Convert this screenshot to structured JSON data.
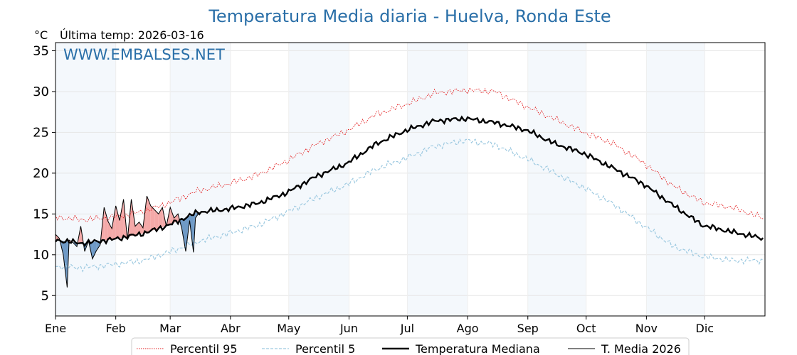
{
  "chart_data": {
    "type": "line",
    "title": "Temperatura Media diaria - Huelva, Ronda Este",
    "unit_label": "°C",
    "last_temp_label": "Última temp: 2026-03-16",
    "watermark": "WWW.EMBALSES.NET",
    "xlabel": "",
    "ylabel": "",
    "ylim": [
      2.5,
      36
    ],
    "yticks": [
      5,
      10,
      15,
      20,
      25,
      30,
      35
    ],
    "x_tick_labels": [
      "Ene",
      "Feb",
      "Mar",
      "Abr",
      "May",
      "Jun",
      "Jul",
      "Ago",
      "Sep",
      "Oct",
      "Nov",
      "Dic"
    ],
    "grid": true,
    "legend_position": "bottom",
    "series": [
      {
        "name": "Percentil 95",
        "color": "#e31a1c",
        "style": "dotted",
        "x_days": [
          1,
          15,
          31,
          46,
          59,
          74,
          90,
          105,
          120,
          135,
          151,
          166,
          181,
          196,
          212,
          227,
          243,
          258,
          273,
          288,
          304,
          319,
          334,
          349,
          365
        ],
        "values": [
          14.6,
          14.3,
          14.6,
          15.3,
          16.3,
          17.8,
          18.7,
          19.8,
          21.5,
          23.5,
          25.2,
          27.2,
          28.4,
          29.8,
          30.2,
          30.0,
          28.2,
          26.6,
          25.0,
          23.6,
          21.2,
          18.4,
          16.4,
          15.8,
          14.5
        ]
      },
      {
        "name": "Percentil 5",
        "color": "#9ecae1",
        "style": "dashed",
        "x_days": [
          1,
          15,
          31,
          46,
          59,
          74,
          90,
          105,
          120,
          135,
          151,
          166,
          181,
          196,
          212,
          227,
          243,
          258,
          273,
          288,
          304,
          319,
          334,
          349,
          365
        ],
        "values": [
          8.6,
          8.4,
          8.8,
          9.3,
          10.3,
          11.6,
          12.6,
          13.6,
          15.2,
          17.0,
          18.6,
          20.5,
          21.8,
          23.3,
          24.0,
          23.5,
          21.8,
          20.0,
          18.2,
          16.2,
          13.5,
          11.0,
          9.8,
          9.3,
          9.3
        ]
      },
      {
        "name": "Temperatura Mediana",
        "color": "#000000",
        "style": "solid-thick",
        "x_days": [
          1,
          15,
          31,
          46,
          59,
          74,
          90,
          105,
          120,
          135,
          151,
          166,
          181,
          196,
          212,
          227,
          243,
          258,
          273,
          288,
          304,
          319,
          334,
          349,
          365
        ],
        "values": [
          11.8,
          11.4,
          11.9,
          12.6,
          13.6,
          15.2,
          15.6,
          16.3,
          17.6,
          19.6,
          21.2,
          23.6,
          25.2,
          26.4,
          26.7,
          26.2,
          25.3,
          23.6,
          22.4,
          20.6,
          18.6,
          16.0,
          13.6,
          12.8,
          12.0
        ]
      },
      {
        "name": "T. Media 2026",
        "color": "#000000",
        "style": "solid-thin",
        "x_days": [
          1,
          3,
          5,
          7,
          8,
          10,
          12,
          14,
          16,
          18,
          20,
          22,
          24,
          26,
          28,
          30,
          32,
          34,
          36,
          38,
          40,
          42,
          44,
          46,
          48,
          50,
          52,
          54,
          56,
          58,
          60,
          62,
          64,
          66,
          68,
          70,
          72,
          73,
          75
        ],
        "values": [
          12.5,
          12.0,
          10.0,
          6.0,
          11.8,
          11.5,
          11.0,
          13.5,
          10.4,
          11.7,
          9.5,
          10.5,
          11.2,
          15.8,
          14.1,
          13.2,
          16.0,
          14.2,
          16.8,
          11.8,
          16.8,
          13.5,
          14.0,
          13.3,
          17.2,
          16.0,
          15.5,
          15.0,
          15.8,
          13.5,
          15.8,
          14.5,
          15.0,
          13.2,
          10.4,
          14.2,
          10.3,
          14.5,
          15.2
        ]
      }
    ]
  }
}
